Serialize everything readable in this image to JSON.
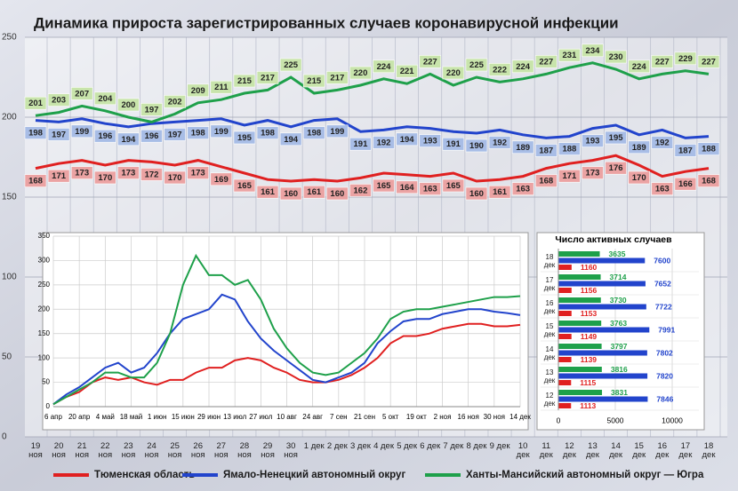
{
  "chart_data": [
    {
      "type": "line",
      "title": "Динамика прироста зарегистрированных случаев коронавирусной инфекции",
      "categories": [
        "19 ноя",
        "20 ноя",
        "21 ноя",
        "22 ноя",
        "23 ноя",
        "24 ноя",
        "25 ноя",
        "26 ноя",
        "27 ноя",
        "28 ноя",
        "29 ноя",
        "30 ноя",
        "1 дек",
        "2 дек",
        "3 дек",
        "4 дек",
        "5 дек",
        "6 дек",
        "7 дек",
        "8 дек",
        "9 дек",
        "10 дек",
        "11 дек",
        "12 дек",
        "13 дек",
        "14 дек",
        "15 дек",
        "16 дек",
        "17 дек",
        "18 дек"
      ],
      "series": [
        {
          "name": "Тюменская область",
          "color": "#e02020",
          "values": [
            168,
            171,
            173,
            170,
            173,
            172,
            170,
            173,
            169,
            165,
            161,
            160,
            161,
            160,
            162,
            165,
            164,
            163,
            165,
            160,
            161,
            163,
            168,
            171,
            173,
            176,
            170,
            163,
            166,
            168
          ]
        },
        {
          "name": "Ямало-Ненецкий автономный округ",
          "color": "#2244cc",
          "values": [
            198,
            197,
            199,
            196,
            194,
            196,
            197,
            198,
            199,
            195,
            198,
            194,
            198,
            199,
            191,
            192,
            194,
            193,
            191,
            190,
            192,
            189,
            187,
            188,
            193,
            195,
            189,
            192,
            187,
            188
          ]
        },
        {
          "name": "Ханты-Мансийский автономный округ — Югра",
          "color": "#1ea04a",
          "values": [
            201,
            203,
            207,
            204,
            200,
            197,
            202,
            209,
            211,
            215,
            217,
            225,
            215,
            217,
            220,
            224,
            221,
            227,
            220,
            225,
            222,
            224,
            227,
            231,
            234,
            230,
            224,
            227,
            229,
            227
          ]
        }
      ],
      "ylim": [
        0,
        250
      ],
      "yticks": [
        0,
        50,
        100,
        150,
        200,
        250
      ],
      "grid": true
    },
    {
      "type": "line",
      "categories": [
        "6 апр",
        null,
        "20 апр",
        null,
        "4 май",
        null,
        "18 май",
        null,
        "1 июн",
        null,
        "15 июн",
        null,
        "29 июн",
        null,
        "13 июл",
        null,
        "27 июл",
        null,
        "10 авг",
        null,
        "24 авг",
        null,
        "7 сен",
        null,
        "21 сен",
        null,
        "5 окт",
        null,
        "19 окт",
        null,
        "2 ноя",
        null,
        "16 ноя",
        null,
        "30 ноя",
        null,
        "14 дек"
      ],
      "series": [
        {
          "color": "#e02020",
          "values": [
            5,
            20,
            30,
            50,
            60,
            55,
            60,
            50,
            45,
            55,
            55,
            70,
            80,
            80,
            95,
            100,
            95,
            80,
            70,
            55,
            50,
            50,
            55,
            65,
            80,
            100,
            130,
            145,
            145,
            150,
            160,
            165,
            170,
            170,
            165,
            165,
            168
          ]
        },
        {
          "color": "#2244cc",
          "values": [
            5,
            25,
            40,
            60,
            80,
            90,
            70,
            80,
            110,
            150,
            180,
            190,
            200,
            230,
            220,
            175,
            140,
            115,
            95,
            75,
            55,
            50,
            60,
            70,
            90,
            130,
            155,
            175,
            180,
            180,
            190,
            195,
            200,
            200,
            195,
            192,
            188
          ]
        },
        {
          "color": "#1ea04a",
          "values": [
            5,
            20,
            35,
            50,
            70,
            70,
            60,
            60,
            90,
            150,
            250,
            310,
            270,
            270,
            250,
            260,
            220,
            160,
            120,
            90,
            70,
            65,
            70,
            90,
            110,
            140,
            180,
            195,
            200,
            200,
            205,
            210,
            215,
            220,
            225,
            225,
            227
          ]
        }
      ],
      "ylim": [
        0,
        350
      ],
      "yticks": [
        0,
        50,
        100,
        150,
        200,
        250,
        300,
        350
      ],
      "grid": true
    },
    {
      "type": "hbar",
      "title": "Число активных случаев",
      "categories": [
        "18 дек",
        "17 дек",
        "16 дек",
        "15 дек",
        "14 дек",
        "13 дек",
        "12 дек"
      ],
      "series": [
        {
          "color": "#1ea04a",
          "values": [
            3635,
            3714,
            3730,
            3763,
            3797,
            3816,
            3831
          ]
        },
        {
          "color": "#2244cc",
          "values": [
            7600,
            7652,
            7722,
            7991,
            7802,
            7820,
            7846
          ]
        },
        {
          "color": "#e02020",
          "values": [
            1160,
            1156,
            1153,
            1149,
            1139,
            1115,
            1113
          ]
        }
      ],
      "xlim": [
        0,
        10000
      ],
      "xticks": [
        0,
        5000,
        10000
      ],
      "grid": true
    }
  ]
}
